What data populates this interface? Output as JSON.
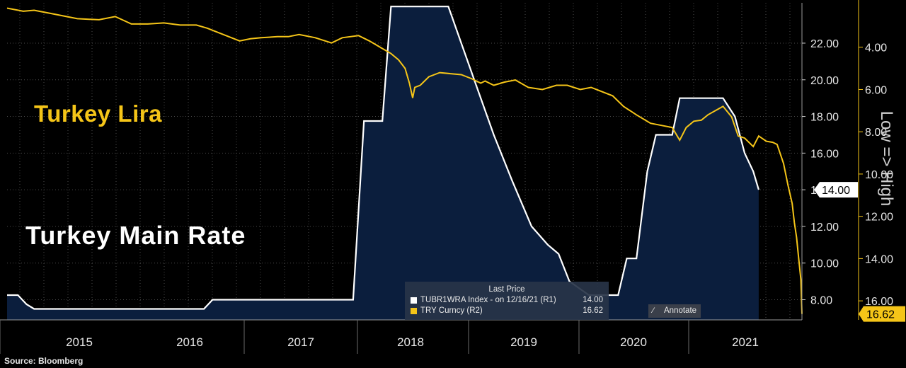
{
  "source": "Source: Bloomberg",
  "annotations": {
    "lira": "Turkey Lira",
    "rate": "Turkey Main Rate"
  },
  "right_axis_title": "Low => High",
  "legend": {
    "title": "Last Price",
    "rows": [
      {
        "name": "TUBR1WRA Index -   on 12/16/21  (R1)",
        "value": "14.00",
        "color": "#ffffff"
      },
      {
        "name": "TRY Curncy  (R2)",
        "value": "16.62",
        "color": "#f5c518"
      }
    ]
  },
  "annotate_button": {
    "label": "Annotate"
  },
  "colors": {
    "rate_line": "#ffffff",
    "rate_fill": "#0b1e3d",
    "lira_line": "#f5c518",
    "grid": "#4a4a4a",
    "background": "#000000"
  },
  "chart_data": {
    "type": "line",
    "x_axis": {
      "labels": [
        "2015",
        "2016",
        "2017",
        "2018",
        "2019",
        "2020",
        "2021"
      ],
      "range": [
        2014.6,
        2021.95
      ]
    },
    "y_axis_rate": {
      "ticks": [
        "8.00",
        "10.00",
        "12.00",
        "14.00",
        "16.00",
        "18.00",
        "20.00",
        "22.00"
      ],
      "range": [
        6.9,
        24.2
      ]
    },
    "y_axis_try": {
      "ticks": [
        "4.00",
        "6.00",
        "8.00",
        "10.00",
        "12.00",
        "14.00",
        "16.00"
      ],
      "range": [
        1.9,
        16.9
      ],
      "inverted": true
    },
    "last_values": {
      "rate": "14.00",
      "try": "16.62"
    },
    "series": [
      {
        "name": "TUBR1WRA Index",
        "axis": "R1",
        "points": [
          [
            2014.6,
            8.25
          ],
          [
            2014.7,
            8.25
          ],
          [
            2014.78,
            7.75
          ],
          [
            2014.85,
            7.5
          ],
          [
            2016.42,
            7.5
          ],
          [
            2016.5,
            8.0
          ],
          [
            2017.8,
            8.0
          ],
          [
            2017.9,
            17.75
          ],
          [
            2017.95,
            17.75
          ],
          [
            2018.0,
            17.75
          ],
          [
            2018.07,
            17.75
          ],
          [
            2018.15,
            24.0
          ],
          [
            2018.68,
            24.0
          ],
          [
            2018.8,
            22.0
          ],
          [
            2018.95,
            19.5
          ],
          [
            2019.1,
            17.0
          ],
          [
            2019.27,
            14.5
          ],
          [
            2019.45,
            12.0
          ],
          [
            2019.6,
            11.0
          ],
          [
            2019.7,
            10.5
          ],
          [
            2019.8,
            9.0
          ],
          [
            2019.98,
            8.25
          ],
          [
            2020.25,
            8.25
          ],
          [
            2020.33,
            10.25
          ],
          [
            2020.42,
            10.25
          ],
          [
            2020.52,
            15.0
          ],
          [
            2020.6,
            17.0
          ],
          [
            2020.75,
            17.0
          ],
          [
            2020.82,
            19.0
          ],
          [
            2021.22,
            19.0
          ],
          [
            2021.33,
            18.0
          ],
          [
            2021.42,
            16.0
          ],
          [
            2021.5,
            15.0
          ],
          [
            2021.55,
            14.0
          ]
        ]
      },
      {
        "name": "TRY Curncy",
        "axis": "R2",
        "points": [
          [
            2014.6,
            2.15
          ],
          [
            2014.75,
            2.3
          ],
          [
            2014.85,
            2.25
          ],
          [
            2015.0,
            2.4
          ],
          [
            2015.15,
            2.55
          ],
          [
            2015.25,
            2.65
          ],
          [
            2015.45,
            2.7
          ],
          [
            2015.6,
            2.55
          ],
          [
            2015.75,
            2.9
          ],
          [
            2015.9,
            2.9
          ],
          [
            2016.05,
            2.85
          ],
          [
            2016.2,
            2.95
          ],
          [
            2016.35,
            2.95
          ],
          [
            2016.45,
            3.1
          ],
          [
            2016.55,
            3.3
          ],
          [
            2016.65,
            3.5
          ],
          [
            2016.75,
            3.7
          ],
          [
            2016.85,
            3.6
          ],
          [
            2016.95,
            3.55
          ],
          [
            2017.1,
            3.5
          ],
          [
            2017.2,
            3.5
          ],
          [
            2017.3,
            3.4
          ],
          [
            2017.45,
            3.55
          ],
          [
            2017.6,
            3.8
          ],
          [
            2017.7,
            3.55
          ],
          [
            2017.85,
            3.45
          ],
          [
            2017.95,
            3.7
          ],
          [
            2018.05,
            4.0
          ],
          [
            2018.15,
            4.3
          ],
          [
            2018.22,
            4.6
          ],
          [
            2018.28,
            5.0
          ],
          [
            2018.32,
            5.7
          ],
          [
            2018.35,
            6.4
          ],
          [
            2018.37,
            5.9
          ],
          [
            2018.42,
            5.8
          ],
          [
            2018.5,
            5.4
          ],
          [
            2018.6,
            5.2
          ],
          [
            2018.7,
            5.25
          ],
          [
            2018.8,
            5.3
          ],
          [
            2018.9,
            5.5
          ],
          [
            2018.98,
            5.7
          ],
          [
            2019.02,
            5.6
          ],
          [
            2019.1,
            5.8
          ],
          [
            2019.2,
            5.65
          ],
          [
            2019.3,
            5.55
          ],
          [
            2019.42,
            5.9
          ],
          [
            2019.55,
            6.0
          ],
          [
            2019.68,
            5.8
          ],
          [
            2019.78,
            5.8
          ],
          [
            2019.9,
            6.0
          ],
          [
            2020.0,
            5.9
          ],
          [
            2020.1,
            6.1
          ],
          [
            2020.2,
            6.3
          ],
          [
            2020.3,
            6.8
          ],
          [
            2020.42,
            7.2
          ],
          [
            2020.55,
            7.6
          ],
          [
            2020.65,
            7.7
          ],
          [
            2020.75,
            7.8
          ],
          [
            2020.82,
            8.4
          ],
          [
            2020.88,
            7.8
          ],
          [
            2020.95,
            7.5
          ],
          [
            2021.02,
            7.45
          ],
          [
            2021.08,
            7.2
          ],
          [
            2021.15,
            7.0
          ],
          [
            2021.22,
            6.8
          ],
          [
            2021.3,
            7.3
          ],
          [
            2021.36,
            8.2
          ],
          [
            2021.42,
            8.3
          ],
          [
            2021.5,
            8.7
          ],
          [
            2021.55,
            8.2
          ],
          [
            2021.62,
            8.45
          ],
          [
            2021.68,
            8.5
          ],
          [
            2021.72,
            8.6
          ],
          [
            2021.78,
            9.5
          ],
          [
            2021.82,
            10.5
          ],
          [
            2021.86,
            11.4
          ],
          [
            2021.88,
            12.3
          ],
          [
            2021.9,
            13.0
          ],
          [
            2021.92,
            14.0
          ],
          [
            2021.94,
            15.0
          ],
          [
            2021.95,
            16.62
          ]
        ]
      }
    ]
  }
}
